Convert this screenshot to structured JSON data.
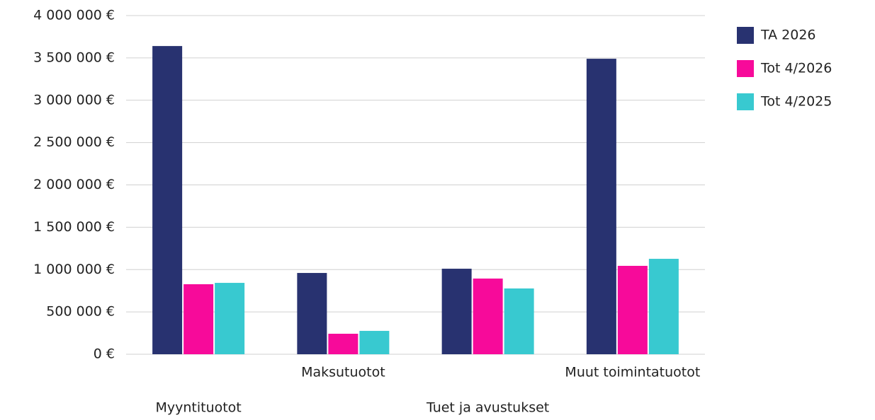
{
  "chart_data": {
    "type": "bar",
    "categories": [
      "Myyntituotot",
      "Maksutuotot",
      "Tuet ja avustukset",
      "Muut toimintatuotot"
    ],
    "series": [
      {
        "name": "TA 2026",
        "color": "#283270",
        "values": [
          3640000,
          960000,
          1010000,
          3490000
        ]
      },
      {
        "name": "Tot 4/2026",
        "color": "#f70a9a",
        "values": [
          827000,
          242000,
          894000,
          1044000
        ]
      },
      {
        "name": "Tot 4/2025",
        "color": "#38c9d0",
        "values": [
          843000,
          276000,
          777000,
          1127000
        ]
      }
    ],
    "ylim": [
      0,
      4000000
    ],
    "yticks": [
      {
        "value": 0,
        "label": "0 €"
      },
      {
        "value": 500000,
        "label": "500 000 €"
      },
      {
        "value": 1000000,
        "label": "1 000 000 €"
      },
      {
        "value": 1500000,
        "label": "1 500 000 €"
      },
      {
        "value": 2000000,
        "label": "2 000 000 €"
      },
      {
        "value": 2500000,
        "label": "2 500 000 €"
      },
      {
        "value": 3000000,
        "label": "3 000 000 €"
      },
      {
        "value": 3500000,
        "label": "3 500 000 €"
      },
      {
        "value": 4000000,
        "label": "4 000 000 €"
      }
    ],
    "grid": true,
    "legend": "right"
  }
}
